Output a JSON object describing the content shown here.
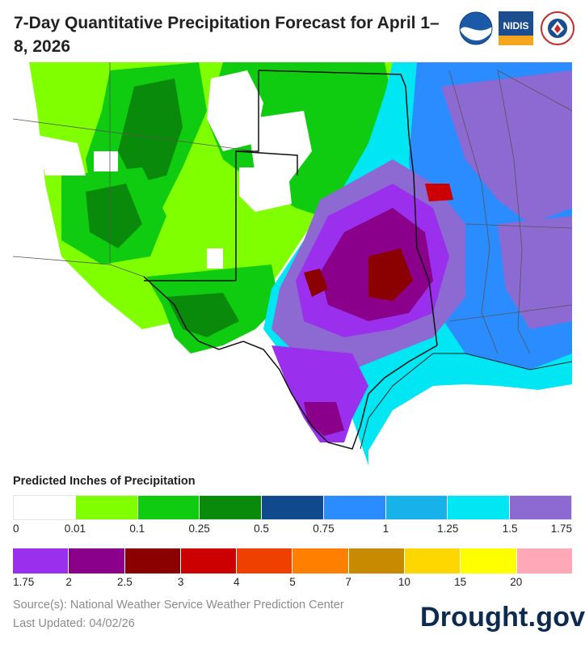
{
  "title": "7-Day Quantitative Precipitation Forecast for April 1–8, 2026",
  "logos": {
    "noaa": "NOAA",
    "nidis": "NIDIS",
    "nws": "National Weather Service"
  },
  "legend": {
    "title": "Predicted Inches of Precipitation",
    "row1_colors": [
      "#ffffff",
      "#80ff00",
      "#10cc10",
      "#0a8a0a",
      "#114a8c",
      "#2a8cff",
      "#18b1ea",
      "#00e6f2",
      "#8c6ad2"
    ],
    "row1_ticks": [
      "0",
      "0.01",
      "0.1",
      "0.25",
      "0.5",
      "0.75",
      "1",
      "1.25",
      "1.5",
      "1.75"
    ],
    "row2_colors": [
      "#9a30ee",
      "#8a008a",
      "#8b0000",
      "#cc0000",
      "#f04000",
      "#ff8000",
      "#c88a00",
      "#ffd700",
      "#ffff00",
      "#ffa8b8"
    ],
    "row2_ticks": [
      "1.75",
      "2",
      "2.5",
      "3",
      "4",
      "5",
      "7",
      "10",
      "15",
      "20"
    ]
  },
  "footer": {
    "source": "Source(s): National Weather Service Weather Prediction Center",
    "updated": "Last Updated: 04/02/26",
    "brand": "Drought.gov"
  }
}
